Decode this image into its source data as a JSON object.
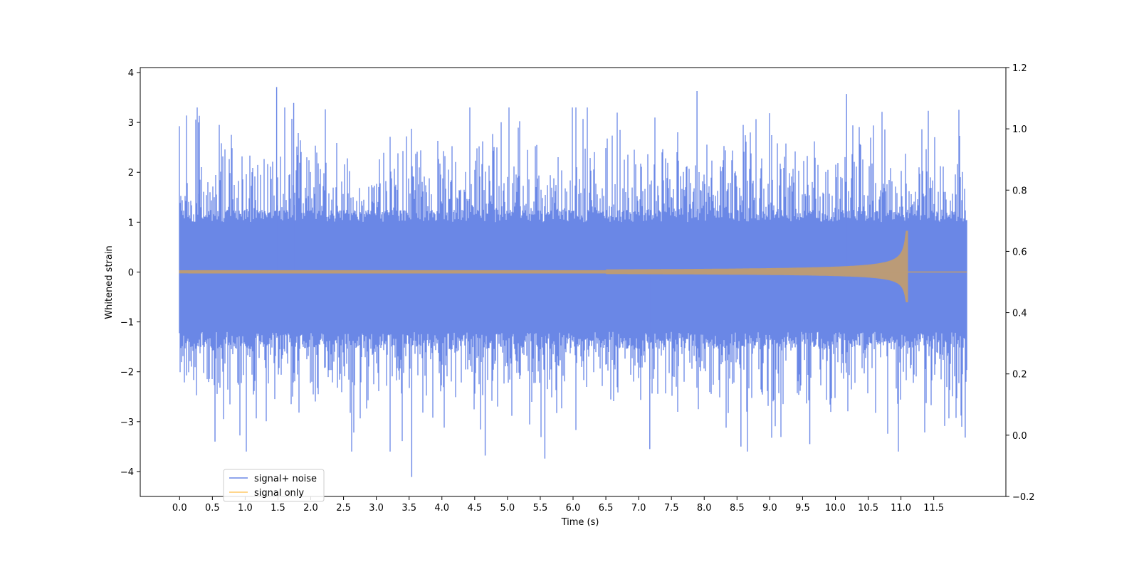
{
  "chart_data": {
    "type": "line",
    "xlabel": "Time (s)",
    "ylabel": "Whitened strain",
    "xlim": [
      -0.6,
      12.6
    ],
    "ylim": [
      -4.5,
      4.1
    ],
    "y2lim": [
      -0.2,
      1.2
    ],
    "x_ticks": [
      0.0,
      0.5,
      1.0,
      1.5,
      2.0,
      2.5,
      3.0,
      3.5,
      4.0,
      4.5,
      5.0,
      5.5,
      6.0,
      6.5,
      7.0,
      7.5,
      8.0,
      8.5,
      9.0,
      9.5,
      10.0,
      10.5,
      11.0,
      11.5
    ],
    "x_tick_labels": [
      "0.0",
      "0.5",
      "1.0",
      "1.5",
      "2.0",
      "2.5",
      "3.0",
      "3.5",
      "4.0",
      "4.5",
      "5.0",
      "5.5",
      "6.0",
      "6.5",
      "7.0",
      "7.5",
      "8.0",
      "8.5",
      "9.0",
      "9.5",
      "10.0",
      "10.5",
      "11.0",
      "11.5"
    ],
    "y_ticks": [
      -4,
      -3,
      -2,
      -1,
      0,
      1,
      2,
      3,
      4
    ],
    "y_tick_labels": [
      "−4",
      "−3",
      "−2",
      "−1",
      "0",
      "1",
      "2",
      "3",
      "4"
    ],
    "y2_ticks": [
      -0.2,
      0.0,
      0.2,
      0.4,
      0.6,
      0.8,
      1.0,
      1.2
    ],
    "y2_tick_labels": [
      "−0.2",
      "0.0",
      "0.2",
      "0.4",
      "0.6",
      "0.8",
      "1.0",
      "1.2"
    ],
    "grid": false,
    "legend_placement": "lower-left",
    "series": [
      {
        "name": "signal+ noise",
        "color": "#6a87e6",
        "x_range": [
          0.0,
          12.0
        ],
        "description_values": {
          "typical_amplitude": 1.7,
          "peaks": [
            [
              1.48,
              3.71
            ],
            [
              7.89,
              3.63
            ],
            [
              10.17,
              3.57
            ],
            [
              1.74,
              3.39
            ],
            [
              0.29,
              3.0
            ],
            [
              3.54,
              -4.11
            ],
            [
              5.57,
              -3.74
            ],
            [
              4.66,
              -3.68
            ],
            [
              0.54,
              -3.4
            ],
            [
              8.56,
              -3.5
            ],
            [
              7.17,
              -3.55
            ],
            [
              9.61,
              -3.45
            ],
            [
              11.98,
              -3.32
            ]
          ]
        }
      },
      {
        "name": "signal only",
        "color": "#ffc966",
        "x_range": [
          0.0,
          12.0
        ],
        "merger_time": 11.1,
        "peak_amplitude": 0.82,
        "min_amplitude": -0.6
      }
    ]
  }
}
